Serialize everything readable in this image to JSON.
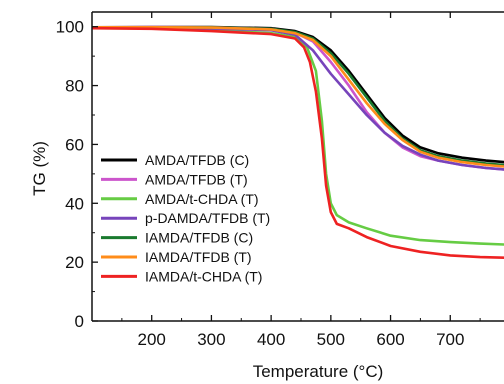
{
  "chart_data": {
    "type": "line",
    "title": "",
    "xlabel": "Temperature (°C)",
    "ylabel": "TG (%)",
    "xlim": [
      100,
      790
    ],
    "ylim": [
      0,
      105
    ],
    "x_ticks": [
      200,
      300,
      400,
      500,
      600,
      700
    ],
    "y_ticks": [
      0,
      20,
      40,
      60,
      80,
      100
    ],
    "grid": false,
    "legend_position": "bottom-left",
    "series": [
      {
        "name": "AMDA/TFDB (C)",
        "color": "#000000",
        "x": [
          100,
          200,
          300,
          400,
          440,
          470,
          500,
          530,
          560,
          590,
          620,
          650,
          680,
          720,
          760,
          790
        ],
        "y": [
          99.8,
          99.9,
          99.9,
          99.5,
          98.5,
          96.5,
          92,
          85,
          77,
          69,
          63,
          59,
          57,
          55.5,
          54.5,
          54
        ]
      },
      {
        "name": "AMDA/TFDB (T)",
        "color": "#cc55cc",
        "x": [
          100,
          200,
          300,
          400,
          440,
          470,
          500,
          530,
          560,
          590,
          620,
          650,
          680,
          720,
          760,
          790
        ],
        "y": [
          99.8,
          99.9,
          99.8,
          99.3,
          98,
          95,
          88,
          80,
          71,
          64,
          59,
          56,
          54.5,
          53,
          52,
          51.5
        ]
      },
      {
        "name": "AMDA/t-CHDA (T)",
        "color": "#66cc44",
        "x": [
          100,
          200,
          300,
          400,
          440,
          460,
          475,
          485,
          492,
          500,
          510,
          530,
          560,
          600,
          650,
          700,
          750,
          790
        ],
        "y": [
          99.5,
          99.4,
          98.8,
          97.8,
          96.5,
          93,
          85,
          68,
          50,
          40,
          36,
          33.5,
          31.5,
          29,
          27.5,
          26.8,
          26.3,
          26
        ]
      },
      {
        "name": "p-DAMDA/TFDB (T)",
        "color": "#7744bb",
        "x": [
          100,
          200,
          300,
          400,
          440,
          470,
          500,
          530,
          560,
          590,
          620,
          650,
          680,
          720,
          760,
          790
        ],
        "y": [
          99.7,
          99.7,
          99.4,
          98.8,
          97.3,
          92,
          84,
          77,
          70,
          64,
          59.5,
          56.5,
          54.5,
          53,
          52,
          51.5
        ]
      },
      {
        "name": "IAMDA/TFDB (C)",
        "color": "#1a7a2e",
        "x": [
          100,
          200,
          300,
          400,
          440,
          470,
          500,
          530,
          560,
          590,
          620,
          650,
          680,
          720,
          760,
          790
        ],
        "y": [
          99.8,
          99.8,
          99.8,
          99.3,
          98.2,
          96,
          91,
          84,
          76,
          68,
          62,
          58,
          56,
          54.5,
          53.5,
          53
        ]
      },
      {
        "name": "IAMDA/TFDB (T)",
        "color": "#ff8c1a",
        "x": [
          100,
          200,
          300,
          400,
          440,
          470,
          500,
          530,
          560,
          590,
          620,
          650,
          680,
          720,
          760,
          790
        ],
        "y": [
          99.8,
          99.8,
          99.7,
          99.1,
          97.8,
          95.5,
          90,
          82,
          74,
          67,
          61.5,
          57.5,
          55.5,
          54,
          53,
          52.5
        ]
      },
      {
        "name": "IAMDA/t-CHDA (T)",
        "color": "#ee2222",
        "x": [
          100,
          200,
          300,
          400,
          440,
          455,
          465,
          475,
          485,
          492,
          500,
          510,
          530,
          560,
          600,
          650,
          700,
          750,
          790
        ],
        "y": [
          99.5,
          99.3,
          98.5,
          97.5,
          96,
          93,
          88,
          78,
          62,
          46,
          37,
          33,
          31.5,
          28.5,
          25.5,
          23.5,
          22.3,
          21.7,
          21.5
        ]
      }
    ]
  }
}
